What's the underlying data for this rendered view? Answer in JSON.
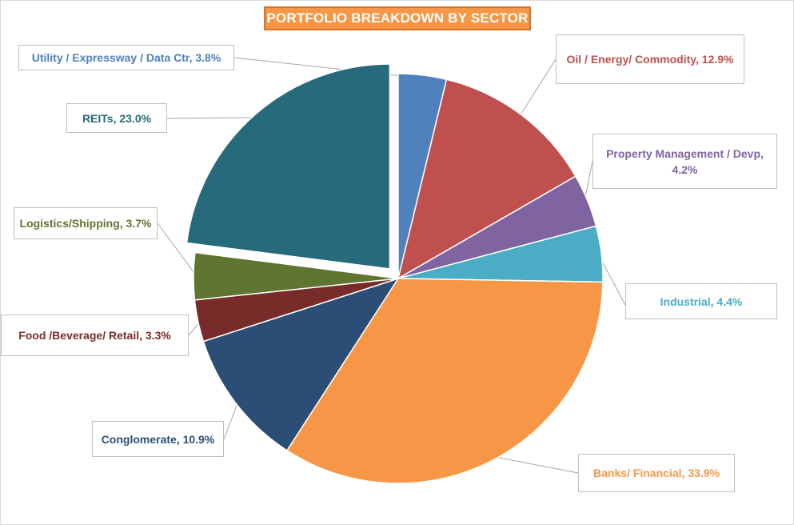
{
  "chart_data": {
    "type": "pie",
    "title": "PORTFOLIO BREAKDOWN BY SECTOR",
    "start_angle_deg": 0,
    "direction": "clockwise",
    "slices": [
      {
        "name": "Utility / Expressway / Data Ctr",
        "value": 3.8,
        "label": "Utility / Expressway / Data Ctr, 3.8%",
        "color": "#4f81bd"
      },
      {
        "name": "Oil / Energy/ Commodity",
        "value": 12.9,
        "label": "Oil / Energy/ Commodity, 12.9%",
        "color": "#c0504d"
      },
      {
        "name": "Property Management / Devp",
        "value": 4.2,
        "label": "Property Management / Devp, 4.2%",
        "color": "#8064a2"
      },
      {
        "name": "Industrial",
        "value": 4.4,
        "label": "Industrial, 4.4%",
        "color": "#4bacc6"
      },
      {
        "name": "Banks/ Financial",
        "value": 33.9,
        "label": "Banks/ Financial,  33.9%",
        "color": "#f79646"
      },
      {
        "name": "Conglomerate",
        "value": 10.9,
        "label": "Conglomerate, 10.9%",
        "color": "#2c4d75"
      },
      {
        "name": "Food /Beverage/ Retail",
        "value": 3.3,
        "label": "Food /Beverage/ Retail, 3.3%",
        "color": "#772c2a"
      },
      {
        "name": "Logistics/Shipping",
        "value": 3.7,
        "label": "Logistics/Shipping,  3.7%",
        "color": "#5f7530"
      },
      {
        "name": "REITs",
        "value": 23.0,
        "label": "REITs, 23.0%",
        "color": "#276a7c",
        "exploded": true
      }
    ]
  }
}
